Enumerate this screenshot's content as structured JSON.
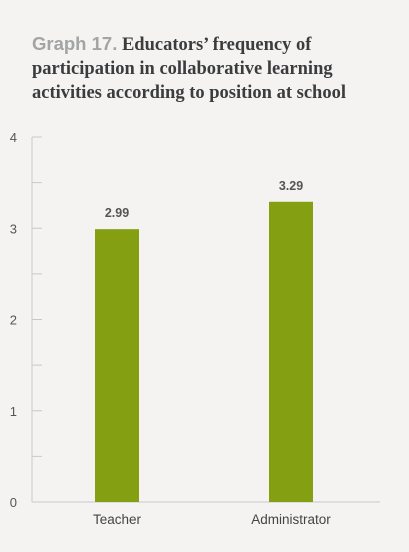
{
  "title_prefix": "Graph 17.",
  "title_text": "Educators’ frequency of participation in collaborative learning activities according to position at school",
  "chart_data": {
    "type": "bar",
    "categories": [
      "Teacher",
      "Administrator"
    ],
    "values": [
      2.99,
      3.29
    ],
    "data_labels": [
      "2.99",
      "3.29"
    ],
    "ylim": [
      0,
      4
    ],
    "y_ticks": [
      0,
      1,
      2,
      3,
      4
    ],
    "y_tick_labels": [
      "0",
      "1",
      "2",
      "3",
      "4"
    ],
    "y_minor_step": 0.5,
    "xlabel": "",
    "ylabel": "",
    "grid": false,
    "bar_color": "#84a012",
    "axis_color": "#c8c8c8"
  }
}
